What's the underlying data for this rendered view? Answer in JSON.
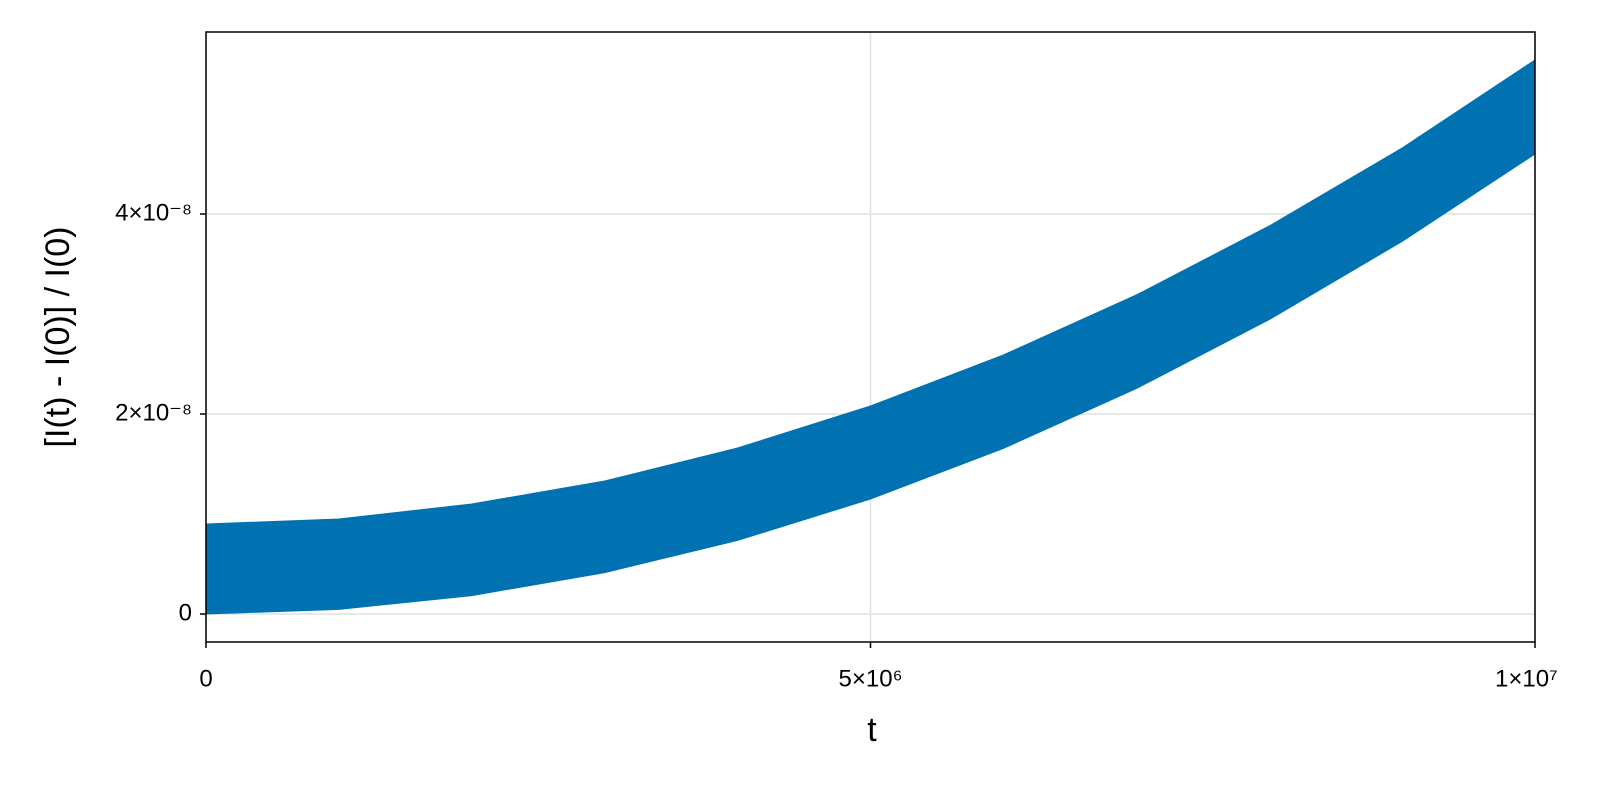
{
  "chart_data": {
    "type": "band",
    "xlabel": "t",
    "ylabel": "[I(t) - I(0)] / I(0)",
    "x": [
      0,
      1000000,
      2000000,
      3000000,
      4000000,
      5000000,
      6000000,
      7000000,
      8000000,
      9000000,
      10000000
    ],
    "series": [
      {
        "color": "#0072b2",
        "lower": [
          0,
          4.6e-10,
          1.84e-09,
          4.14e-09,
          7.36e-09,
          1.15e-08,
          1.656e-08,
          2.254e-08,
          2.944e-08,
          3.726e-08,
          4.6e-08
        ],
        "upper": [
          9e-09,
          9.5e-09,
          1.1e-08,
          1.33e-08,
          1.66e-08,
          2.08e-08,
          2.59e-08,
          3.19e-08,
          3.88e-08,
          4.66e-08,
          5.54e-08
        ]
      }
    ],
    "xlim": [
      0,
      10000000
    ],
    "xticks": [
      0,
      {
        "value": 5000000,
        "label": "5×10⁶"
      },
      {
        "value": 10000000,
        "label": "1×10⁷"
      }
    ],
    "ylim": [
      -2.8e-09,
      5.82e-08
    ],
    "yticks": [
      0,
      {
        "value": 2e-08,
        "label": "2×10⁻⁸"
      },
      {
        "value": 4e-08,
        "label": "4×10⁻⁸"
      }
    ],
    "grid": true
  }
}
